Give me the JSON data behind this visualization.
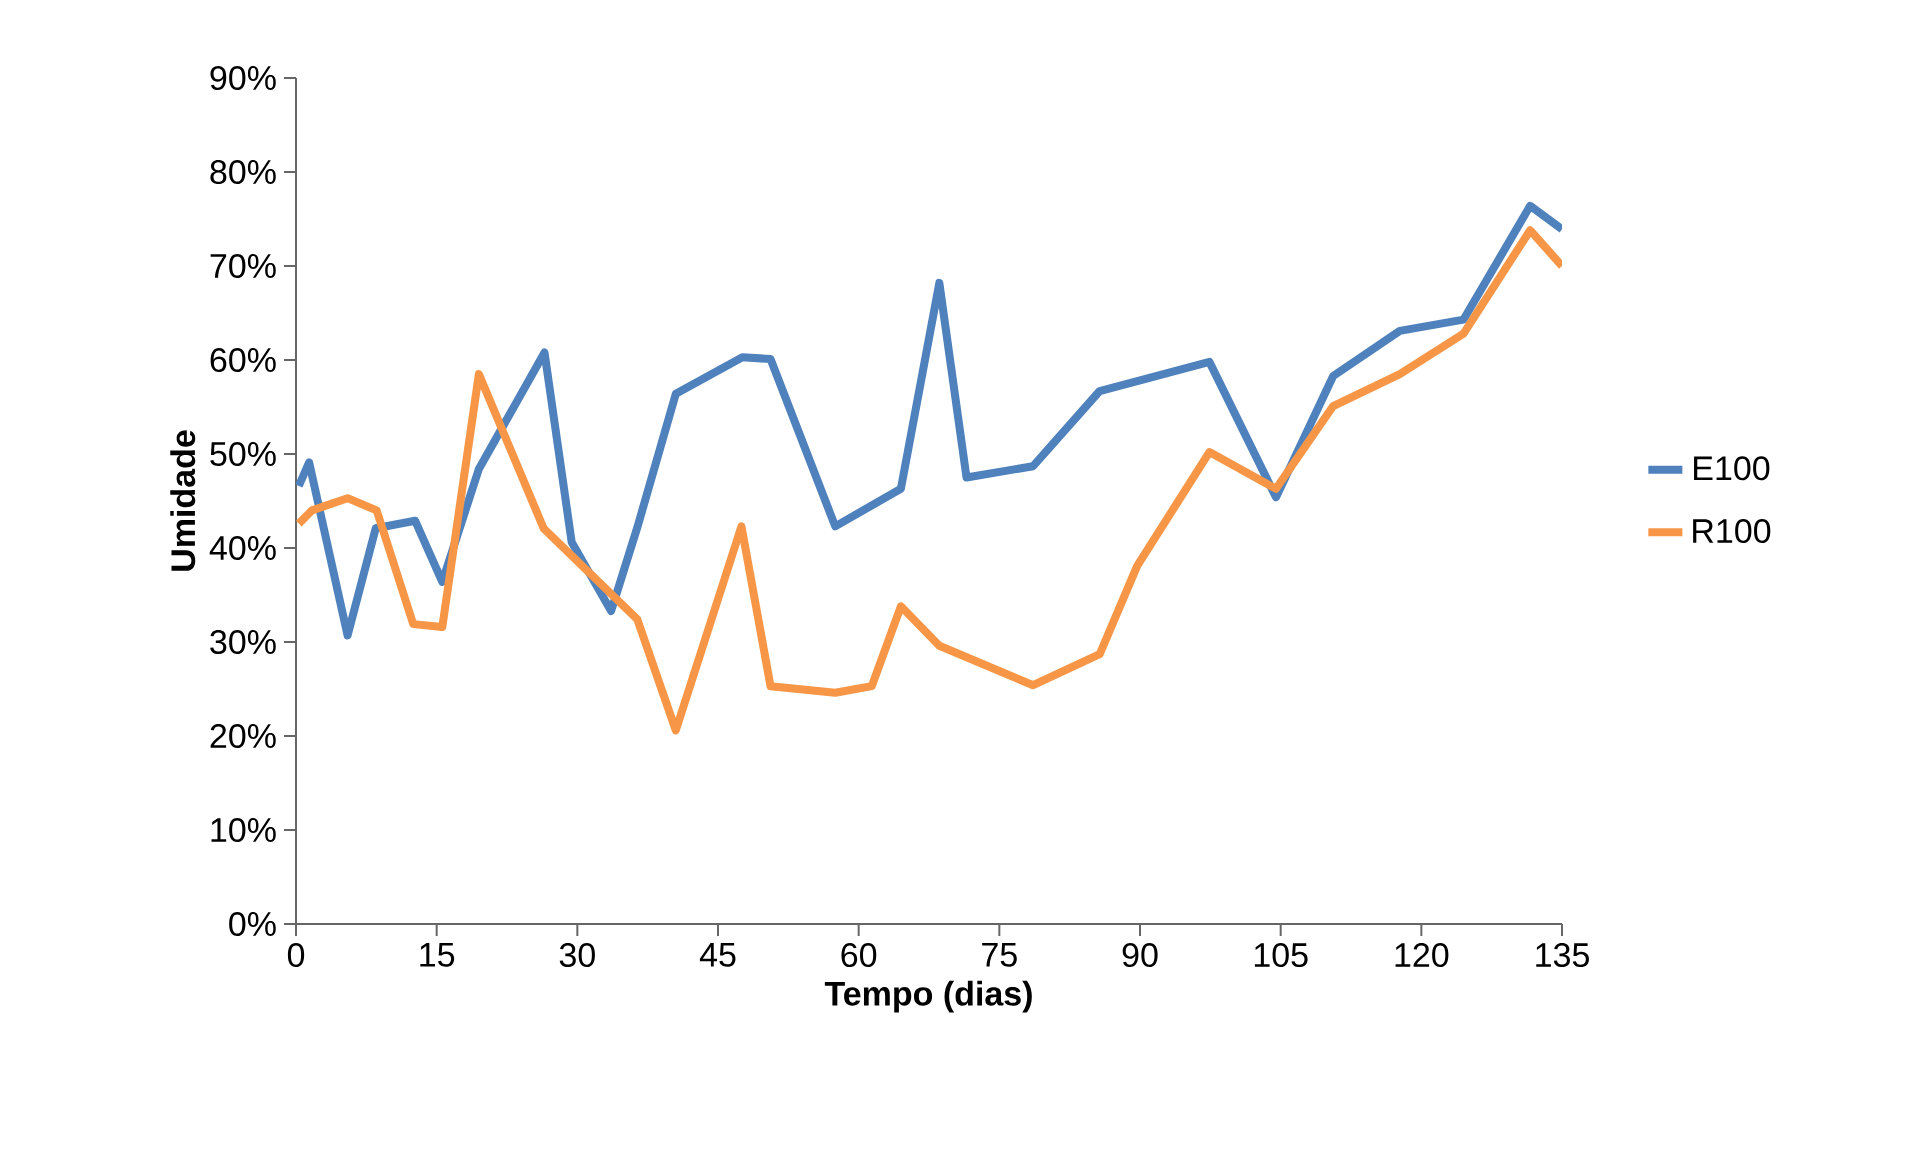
{
  "chart_data": {
    "type": "line",
    "xlabel": "Tempo (dias)",
    "ylabel": "Umidade",
    "xlim": [
      0,
      135
    ],
    "xticks": [
      0,
      15,
      30,
      45,
      60,
      75,
      90,
      105,
      120,
      135
    ],
    "ylim": [
      0,
      90
    ],
    "yticks": [
      {
        "value": 0,
        "label": "0%"
      },
      {
        "value": 10,
        "label": "10%"
      },
      {
        "value": 20,
        "label": "20%"
      },
      {
        "value": 30,
        "label": "30%"
      },
      {
        "value": 40,
        "label": "40%"
      },
      {
        "value": 50,
        "label": "50%"
      },
      {
        "value": 60,
        "label": "60%"
      },
      {
        "value": 70,
        "label": "70%"
      },
      {
        "value": 80,
        "label": "80%"
      },
      {
        "value": 90,
        "label": "90%"
      }
    ],
    "grid": false,
    "legend": "right",
    "marker": "none",
    "line_style": "solid",
    "series": [
      {
        "name": "E100",
        "color": "#4f81bd",
        "x": [
          0.3,
          1.4,
          5.5,
          8.5,
          12.7,
          15.6,
          19.5,
          26.5,
          29.4,
          33.6,
          36.4,
          40.5,
          47.6,
          50.6,
          57.5,
          64.5,
          68.6,
          71.5,
          78.6,
          85.7,
          97.4,
          104.5,
          110.6,
          117.7,
          124.5,
          131.6,
          135
        ],
        "values": [
          46.6,
          49.1,
          30.7,
          42.1,
          42.9,
          36.4,
          48.4,
          60.8,
          40.6,
          33.3,
          42.2,
          56.4,
          60.3,
          60.1,
          42.3,
          46.3,
          68.2,
          47.5,
          48.7,
          56.7,
          59.8,
          45.4,
          58.3,
          63.1,
          64.3,
          76.4,
          73.9
        ]
      },
      {
        "name": "R100",
        "color": "#f79646",
        "x": [
          0.3,
          1.7,
          5.5,
          8.6,
          12.5,
          15.6,
          19.5,
          26.4,
          36.4,
          40.5,
          47.5,
          50.6,
          57.5,
          61.4,
          64.5,
          68.6,
          78.6,
          85.7,
          89.7,
          97.4,
          104.5,
          110.6,
          117.7,
          124.5,
          131.6,
          135
        ],
        "values": [
          42.6,
          44.0,
          45.3,
          44.0,
          31.9,
          31.6,
          58.5,
          42.1,
          32.4,
          20.6,
          42.3,
          25.3,
          24.6,
          25.3,
          33.8,
          29.6,
          25.4,
          28.7,
          38.1,
          50.2,
          46.3,
          55.1,
          58.5,
          62.8,
          73.8,
          70.0
        ]
      }
    ]
  }
}
